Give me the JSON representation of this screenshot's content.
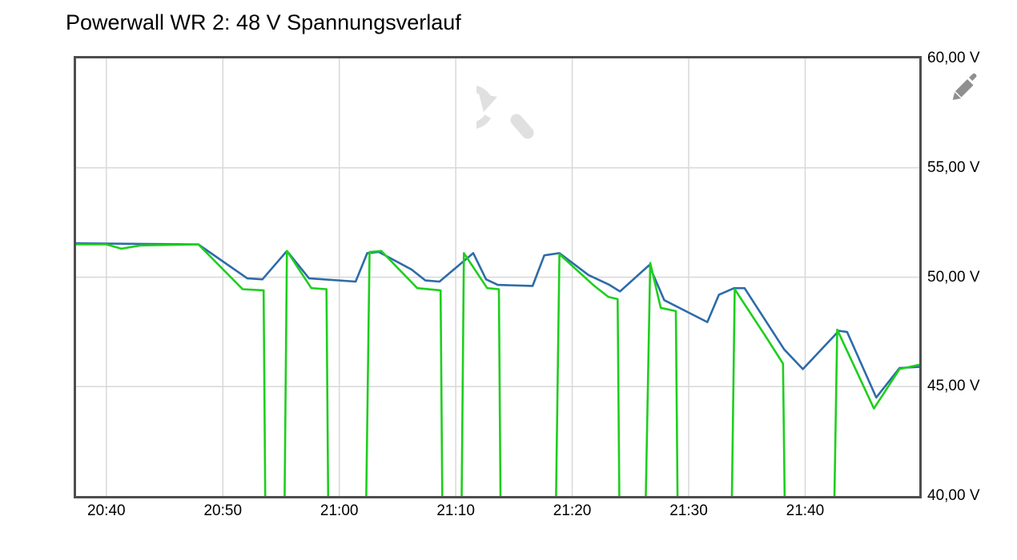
{
  "page": {
    "title": "Powerwall WR 2: 48 V Spannungsverlauf"
  },
  "icons": {
    "reset_zoom": "reset-zoom-magnifier-with-undo-arrow",
    "edit": "pencil"
  },
  "colors": {
    "frame": "#4e4e4e",
    "grid": "#d8d8d8",
    "blue_series": "#2d6ba8",
    "green_series": "#1dcf1d",
    "icon_light": "#e0e0e0",
    "icon_gray": "#8f8f8f"
  },
  "chart_data": {
    "type": "line",
    "title": "Powerwall WR 2: 48 V Spannungsverlauf",
    "xlabel": "",
    "ylabel": "",
    "y_unit": "V",
    "x_unit": "minutes after 20:00",
    "xlim": [
      37.4,
      109.8
    ],
    "ylim": [
      40,
      60
    ],
    "grid": true,
    "legend": "none",
    "x_ticks": [
      {
        "minutes": 40,
        "label": "20:40"
      },
      {
        "minutes": 50,
        "label": "20:50"
      },
      {
        "minutes": 60,
        "label": "21:00"
      },
      {
        "minutes": 70,
        "label": "21:10"
      },
      {
        "minutes": 80,
        "label": "21:20"
      },
      {
        "minutes": 90,
        "label": "21:30"
      },
      {
        "minutes": 100,
        "label": "21:40"
      }
    ],
    "y_ticks": [
      {
        "value": 40,
        "label": "40,00 V"
      },
      {
        "value": 45,
        "label": "45,00 V"
      },
      {
        "value": 50,
        "label": "50,00 V"
      },
      {
        "value": 55,
        "label": "55,00 V"
      },
      {
        "value": 60,
        "label": "60,00 V"
      }
    ],
    "series": [
      {
        "name": "blue",
        "color": "#2d6ba8",
        "points": [
          [
            37.4,
            51.55
          ],
          [
            47.9,
            51.5
          ],
          [
            52.1,
            49.95
          ],
          [
            53.4,
            49.9
          ],
          [
            55.5,
            51.2
          ],
          [
            57.4,
            49.95
          ],
          [
            61.4,
            49.8
          ],
          [
            62.4,
            51.1
          ],
          [
            63.4,
            51.15
          ],
          [
            66.2,
            50.35
          ],
          [
            67.4,
            49.85
          ],
          [
            68.6,
            49.8
          ],
          [
            71.5,
            51.1
          ],
          [
            72.6,
            49.9
          ],
          [
            73.6,
            49.65
          ],
          [
            76.6,
            49.6
          ],
          [
            77.6,
            51.0
          ],
          [
            78.9,
            51.1
          ],
          [
            81.4,
            50.1
          ],
          [
            83.2,
            49.65
          ],
          [
            84.1,
            49.35
          ],
          [
            86.6,
            50.55
          ],
          [
            87.9,
            48.95
          ],
          [
            90.3,
            48.3
          ],
          [
            91.6,
            47.95
          ],
          [
            92.6,
            49.2
          ],
          [
            93.9,
            49.5
          ],
          [
            94.8,
            49.5
          ],
          [
            98.2,
            46.7
          ],
          [
            99.8,
            45.8
          ],
          [
            102.9,
            47.55
          ],
          [
            103.6,
            47.5
          ],
          [
            106.1,
            44.5
          ],
          [
            108.1,
            45.85
          ],
          [
            109.8,
            45.9
          ]
        ]
      },
      {
        "name": "green",
        "color": "#1dcf1d",
        "points": [
          [
            37.4,
            51.5
          ],
          [
            40.0,
            51.5
          ],
          [
            41.3,
            51.3
          ],
          [
            42.9,
            51.45
          ],
          [
            47.9,
            51.5
          ],
          [
            51.7,
            49.45
          ],
          [
            53.5,
            49.4
          ],
          [
            53.65,
            39.5
          ],
          [
            55.3,
            39.5
          ],
          [
            55.5,
            51.2
          ],
          [
            57.6,
            49.5
          ],
          [
            58.9,
            49.45
          ],
          [
            59.05,
            39.5
          ],
          [
            62.3,
            39.5
          ],
          [
            62.6,
            51.15
          ],
          [
            63.6,
            51.2
          ],
          [
            66.7,
            49.5
          ],
          [
            68.7,
            49.4
          ],
          [
            68.85,
            39.5
          ],
          [
            70.5,
            39.5
          ],
          [
            70.7,
            51.1
          ],
          [
            72.7,
            49.5
          ],
          [
            73.7,
            49.45
          ],
          [
            73.85,
            39.5
          ],
          [
            78.6,
            39.5
          ],
          [
            78.9,
            51.05
          ],
          [
            81.9,
            49.6
          ],
          [
            83.1,
            49.1
          ],
          [
            83.9,
            49.0
          ],
          [
            84.05,
            39.5
          ],
          [
            86.3,
            39.5
          ],
          [
            86.7,
            50.65
          ],
          [
            87.6,
            48.6
          ],
          [
            88.9,
            48.45
          ],
          [
            89.05,
            39.5
          ],
          [
            93.7,
            39.5
          ],
          [
            93.95,
            49.45
          ],
          [
            96.6,
            47.3
          ],
          [
            98.1,
            46.05
          ],
          [
            98.25,
            39.5
          ],
          [
            102.5,
            39.5
          ],
          [
            102.75,
            47.6
          ],
          [
            105.9,
            44.0
          ],
          [
            108.1,
            45.8
          ],
          [
            109.8,
            46.0
          ]
        ]
      }
    ]
  }
}
